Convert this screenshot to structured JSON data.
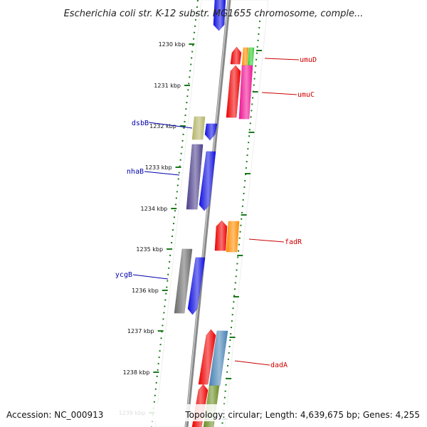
{
  "title": "Escherichia coli str. K-12 substr. MG1655 chromosome, comple...",
  "footer": {
    "accession": "Accession: NC_000913",
    "topology": "Topology: circular; Length: 4,639,675 bp; Genes: 4,255"
  },
  "colors": {
    "forward_label": "#0000aa",
    "reverse_label": "#cc0000",
    "tick": "#1a7a1a",
    "backbone": "#888888"
  },
  "ticks": [
    {
      "label": "1230 kbp"
    },
    {
      "label": "1231 kbp"
    },
    {
      "label": "1232 kbp"
    },
    {
      "label": "1233 kbp"
    },
    {
      "label": "1234 kbp"
    },
    {
      "label": "1235 kbp"
    },
    {
      "label": "1236 kbp"
    },
    {
      "label": "1237 kbp"
    },
    {
      "label": "1238 kbp"
    },
    {
      "label": "1239 kbp"
    }
  ],
  "genes": [
    {
      "name": "umuD",
      "strand": "reverse"
    },
    {
      "name": "umuC",
      "strand": "reverse"
    },
    {
      "name": "dsbB",
      "strand": "forward"
    },
    {
      "name": "nhaB",
      "strand": "forward"
    },
    {
      "name": "fadR",
      "strand": "reverse"
    },
    {
      "name": "ycgB",
      "strand": "forward"
    },
    {
      "name": "dadA",
      "strand": "reverse"
    }
  ]
}
